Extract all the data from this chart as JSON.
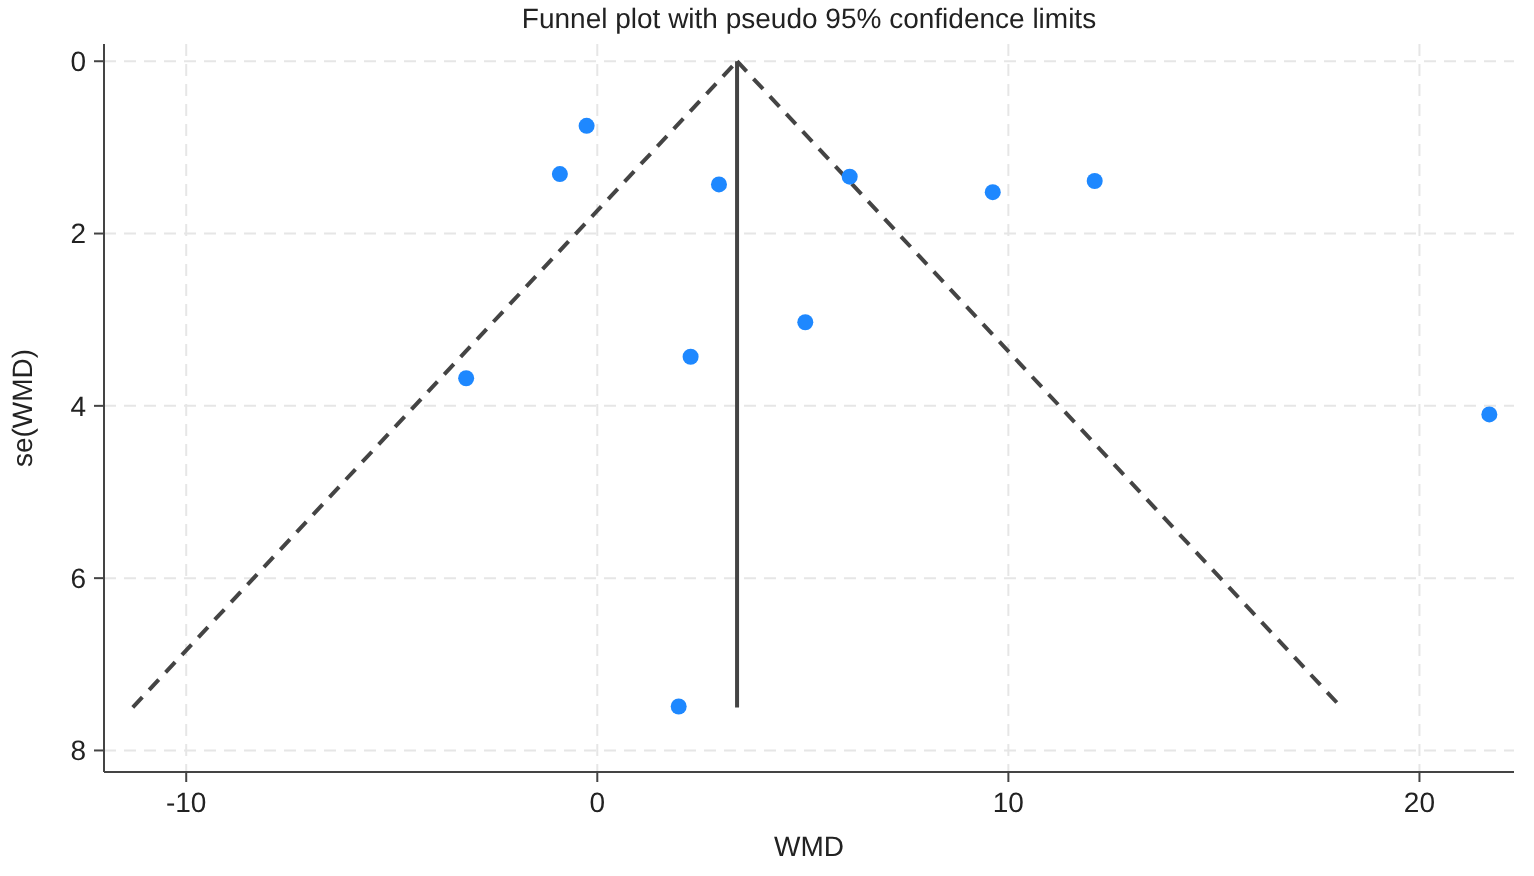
{
  "chart_data": {
    "type": "scatter",
    "title": "Funnel plot with pseudo 95% confidence limits",
    "xlabel": "WMD",
    "ylabel": "se(WMD)",
    "xlim": [
      -12,
      22.3
    ],
    "xticks": [
      -10,
      0,
      10,
      20
    ],
    "ylim": [
      8.25,
      -0.2
    ],
    "yticks": [
      0,
      2,
      4,
      6,
      8
    ],
    "grid": true,
    "series": [
      {
        "color": "#1e88ff",
        "marker": "circle",
        "x": [
          -0.26,
          -0.91,
          2.96,
          -3.19,
          2.27,
          6.14,
          9.62,
          12.1,
          5.06,
          21.7,
          1.98
        ],
        "values": [
          0.75,
          1.31,
          1.43,
          3.68,
          3.43,
          1.34,
          1.52,
          1.39,
          3.03,
          4.1,
          7.49
        ]
      },
      {
        "type": "line",
        "color": "#444444",
        "line_style": "dashed",
        "marker": "none",
        "x": [
          -11.3,
          3.4
        ],
        "values": [
          7.5,
          0
        ]
      },
      {
        "type": "line",
        "color": "#444444",
        "line_style": "dashed",
        "marker": "none",
        "x": [
          3.4,
          18.1
        ],
        "values": [
          0,
          7.5
        ]
      },
      {
        "type": "line",
        "color": "#444444",
        "line_style": "solid",
        "marker": "none",
        "x": [
          3.4,
          3.4
        ],
        "values": [
          0,
          7.5
        ]
      }
    ]
  }
}
